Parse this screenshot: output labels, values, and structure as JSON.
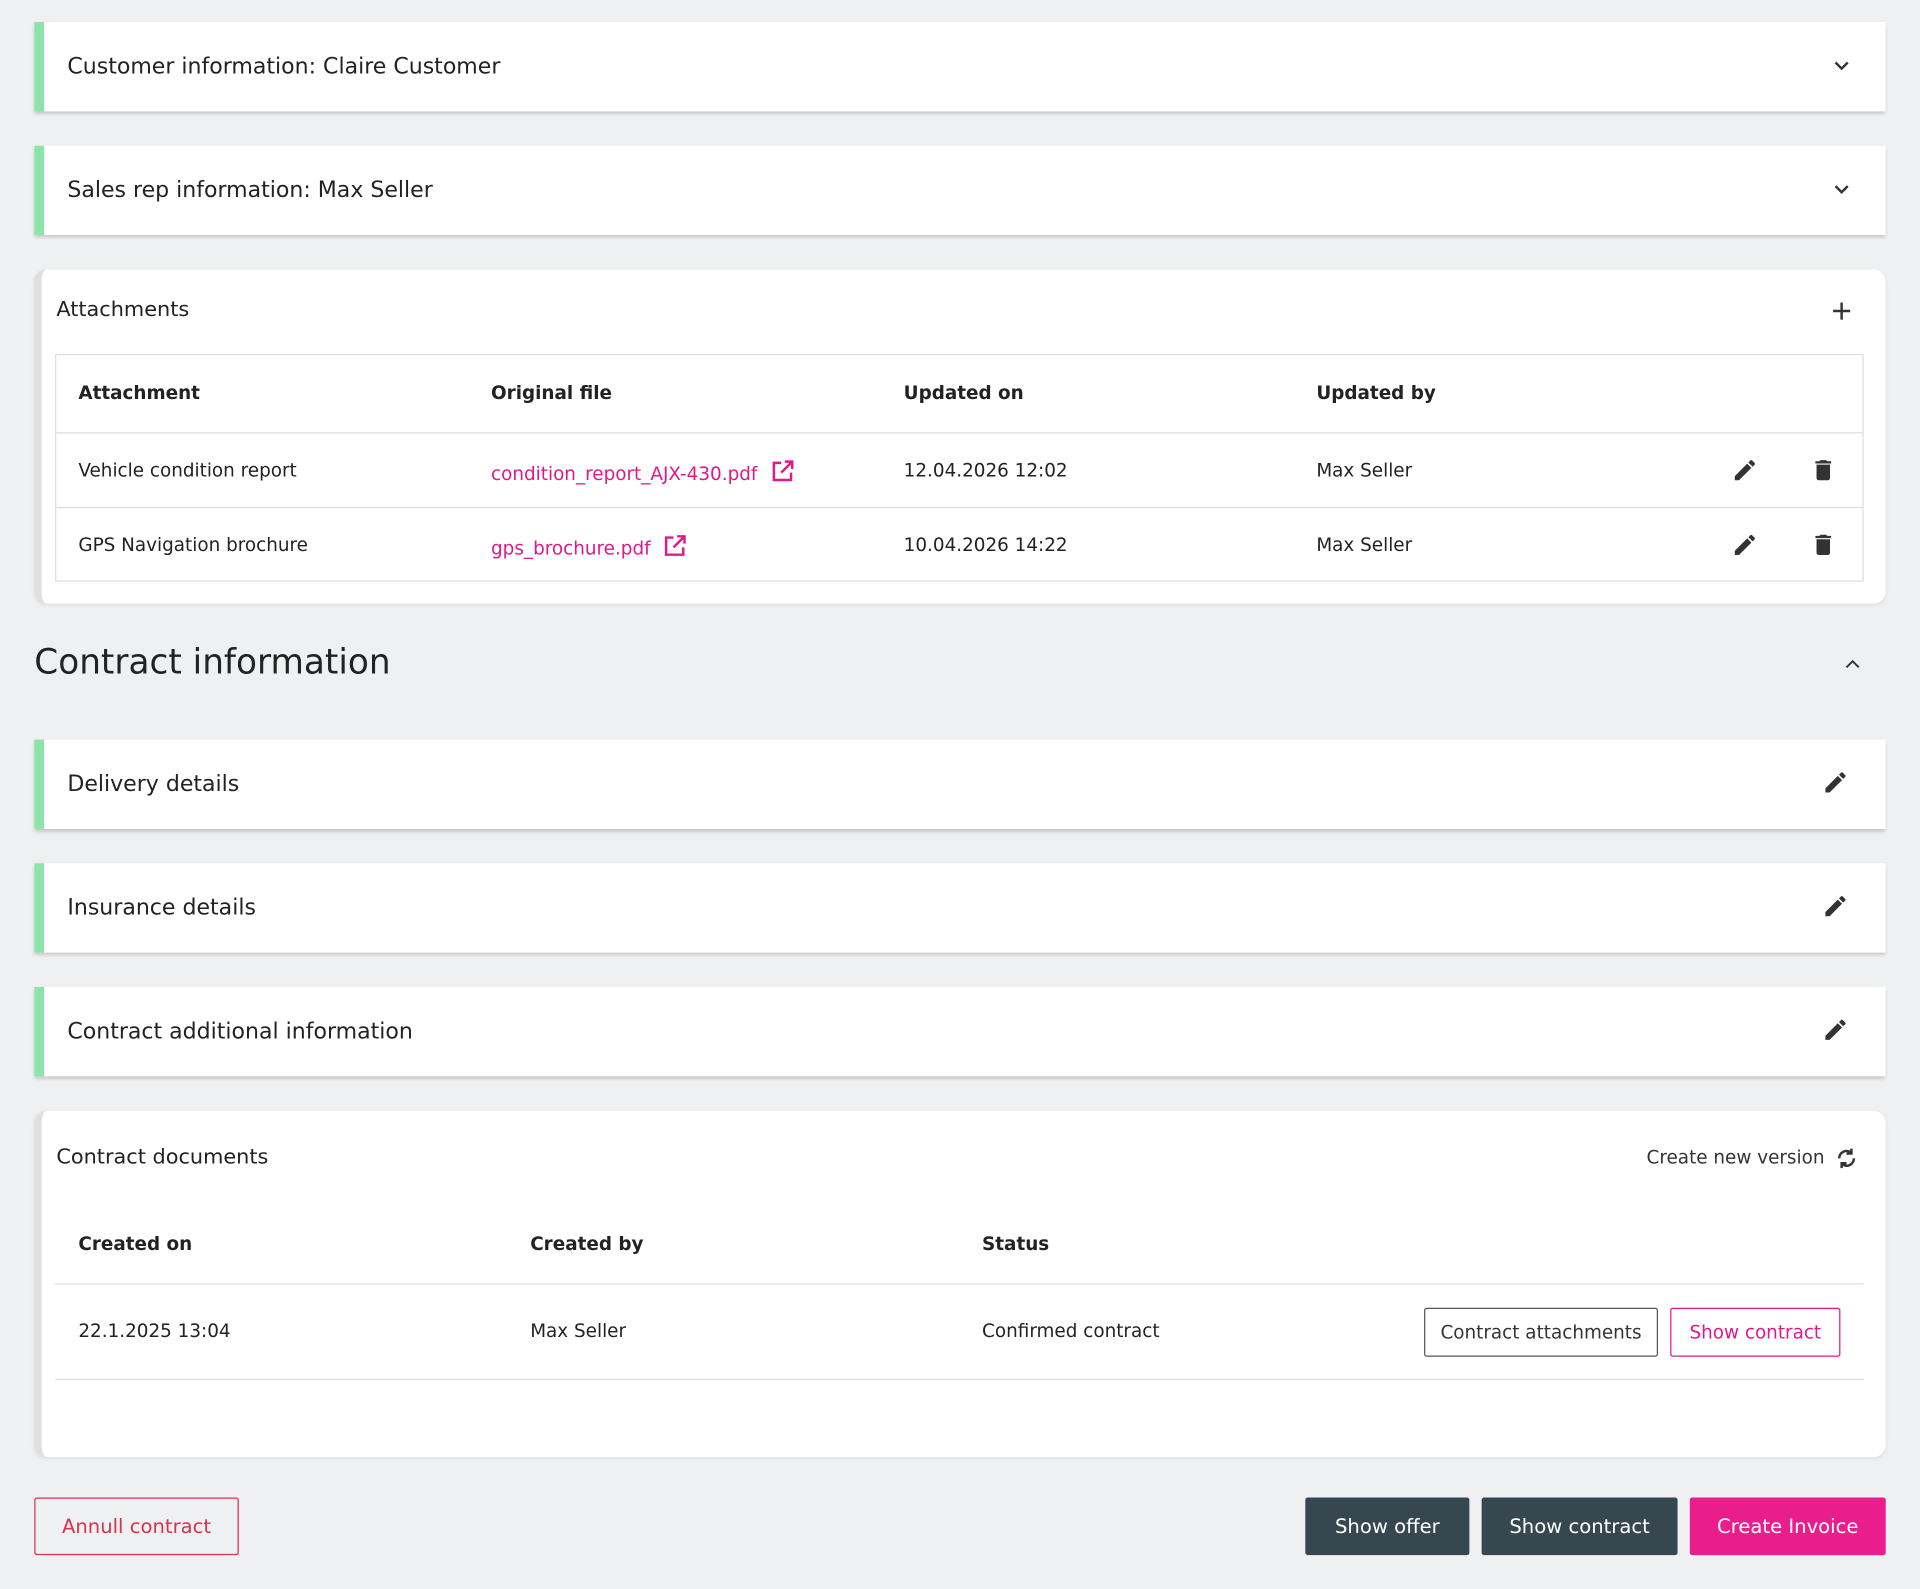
{
  "panels": [
    "Customer information: Claire Customer",
    "Sales rep information: Max Seller"
  ],
  "attachments": {
    "title": "Attachments",
    "columns": [
      "Attachment",
      "Original file",
      "Updated on",
      "Updated by"
    ],
    "rows": [
      [
        "Vehicle condition report",
        "condition_report_AJX-430.pdf",
        "12.04.2026 12:02",
        "Max Seller"
      ],
      [
        "GPS Navigation brochure",
        "gps_brochure.pdf",
        "10.04.2026 14:22",
        "Max Seller"
      ]
    ]
  },
  "contract_information": {
    "title": "Contract information",
    "sections": [
      "Delivery details",
      "Insurance details",
      "Contract additional information"
    ]
  },
  "contract_documents": {
    "title": "Contract documents",
    "action": "Create new version",
    "columns": [
      "Created on",
      "Created by",
      "Status"
    ],
    "rows": [
      [
        "22.1.2025 13:04",
        "Max Seller",
        "Confirmed contract"
      ]
    ],
    "row_buttons": [
      "Contract attachments",
      "Show contract"
    ]
  },
  "footer": {
    "annul": "Annull contract",
    "buttons": [
      "Show offer",
      "Show contract",
      "Create Invoice"
    ]
  }
}
